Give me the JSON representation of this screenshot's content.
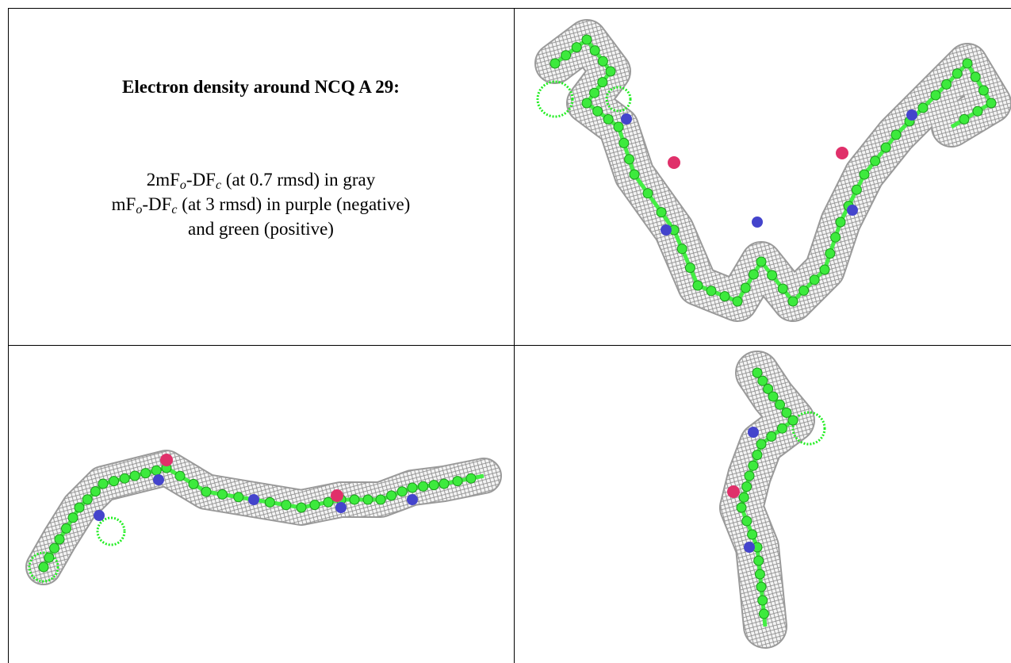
{
  "cell_text": {
    "title": "Electron density around NCQ A 29:",
    "lines": [
      [
        "2mF",
        "o",
        "-DF",
        "c",
        " (at 0.7 rmsd) in gray"
      ],
      [
        "mF",
        "o",
        "-DF",
        "c",
        " (at 3 rmsd) in purple (negative)"
      ],
      [
        "and green (positive)"
      ]
    ]
  }
}
